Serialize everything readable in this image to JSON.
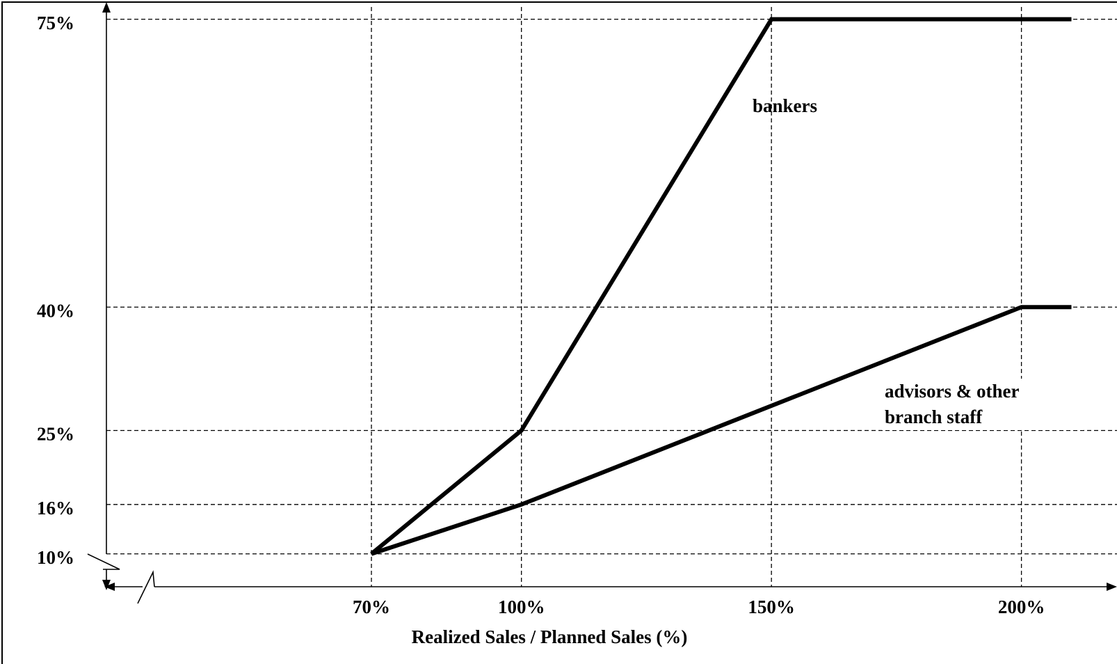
{
  "chart_data": {
    "type": "line",
    "xlabel": "Realized Sales / Planned Sales (%)",
    "xlim": [
      17,
      218
    ],
    "ylim": [
      6,
      77
    ],
    "xticks": [
      {
        "value": 70,
        "label": "70%"
      },
      {
        "value": 100,
        "label": "100%"
      },
      {
        "value": 150,
        "label": "150%"
      },
      {
        "value": 200,
        "label": "200%"
      }
    ],
    "yticks": [
      {
        "value": 10,
        "label": "10%"
      },
      {
        "value": 16,
        "label": "16%"
      },
      {
        "value": 25,
        "label": "25%"
      },
      {
        "value": 40,
        "label": "40%"
      },
      {
        "value": 75,
        "label": "75%"
      }
    ],
    "grid": true,
    "series": [
      {
        "name": "bankers",
        "color": "#000000",
        "x": [
          70,
          100,
          150,
          210
        ],
        "values": [
          10,
          25,
          75,
          75
        ]
      },
      {
        "name": "advisors & other branch staff",
        "color": "#000000",
        "x": [
          70,
          100,
          200,
          210
        ],
        "values": [
          10,
          16,
          40,
          40
        ]
      }
    ]
  }
}
